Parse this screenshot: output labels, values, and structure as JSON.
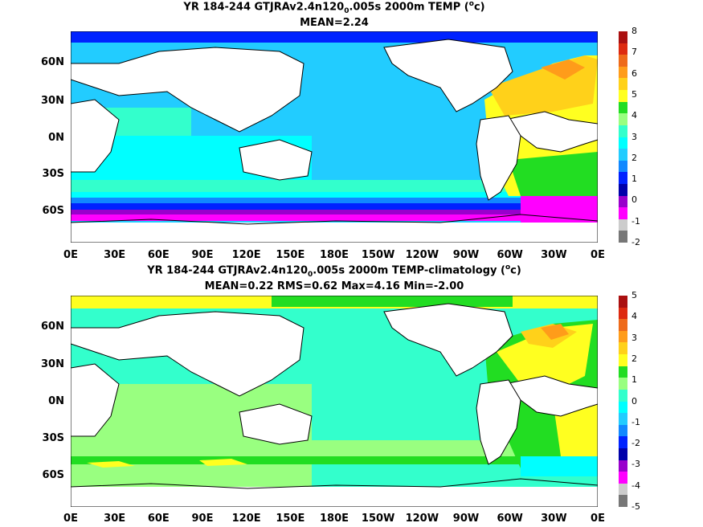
{
  "chart_data": [
    {
      "type": "heatmap",
      "title_main": "YR 184-244 GTJRAv2.4n120",
      "title_sub": "0",
      "title_rest": ".005s 2000m TEMP (",
      "title_sup": "o",
      "title_end": "c)",
      "stats": "MEAN=2.24",
      "xticks": [
        "0E",
        "30E",
        "60E",
        "90E",
        "120E",
        "150E",
        "180E",
        "150W",
        "120W",
        "90W",
        "60W",
        "30W",
        "0E"
      ],
      "yticks": [
        "60N",
        "30N",
        "0N",
        "30S",
        "60S"
      ],
      "colorbar": {
        "labels": [
          "8",
          "7",
          "6",
          "5",
          "4",
          "3",
          "2",
          "1",
          "0",
          "-1",
          "-2"
        ],
        "colors": [
          "#aa1010",
          "#dd2a10",
          "#ee6a1a",
          "#ff9c1a",
          "#ffd11a",
          "#ffff20",
          "#22dd22",
          "#99ff80",
          "#33ffcc",
          "#00ffff",
          "#22ccff",
          "#1188ff",
          "#0022ff",
          "#0000aa",
          "#9900cc",
          "#ff00ff",
          "#cccccc",
          "#777777"
        ]
      }
    },
    {
      "type": "heatmap",
      "title_main": "YR 184-244 GTJRAv2.4n120",
      "title_sub": "0",
      "title_rest": ".005s 2000m TEMP-climatology (",
      "title_sup": "o",
      "title_end": "c)",
      "stats": "MEAN=0.22   RMS=0.62   Max=4.16   Min=-2.00",
      "xticks": [
        "0E",
        "30E",
        "60E",
        "90E",
        "120E",
        "150E",
        "180E",
        "150W",
        "120W",
        "90W",
        "60W",
        "30W",
        "0E"
      ],
      "yticks": [
        "60N",
        "30N",
        "0N",
        "30S",
        "60S"
      ],
      "colorbar": {
        "labels": [
          "5",
          "4",
          "3",
          "2",
          "1",
          "0",
          "-1",
          "-2",
          "-3",
          "-4",
          "-5"
        ],
        "colors": [
          "#aa1010",
          "#dd2a10",
          "#ee6a1a",
          "#ff9c1a",
          "#ffd11a",
          "#ffff20",
          "#22dd22",
          "#99ff80",
          "#33ffcc",
          "#00ffff",
          "#22ccff",
          "#1188ff",
          "#0022ff",
          "#0000aa",
          "#9900cc",
          "#ff00ff",
          "#cccccc",
          "#777777"
        ]
      }
    }
  ]
}
